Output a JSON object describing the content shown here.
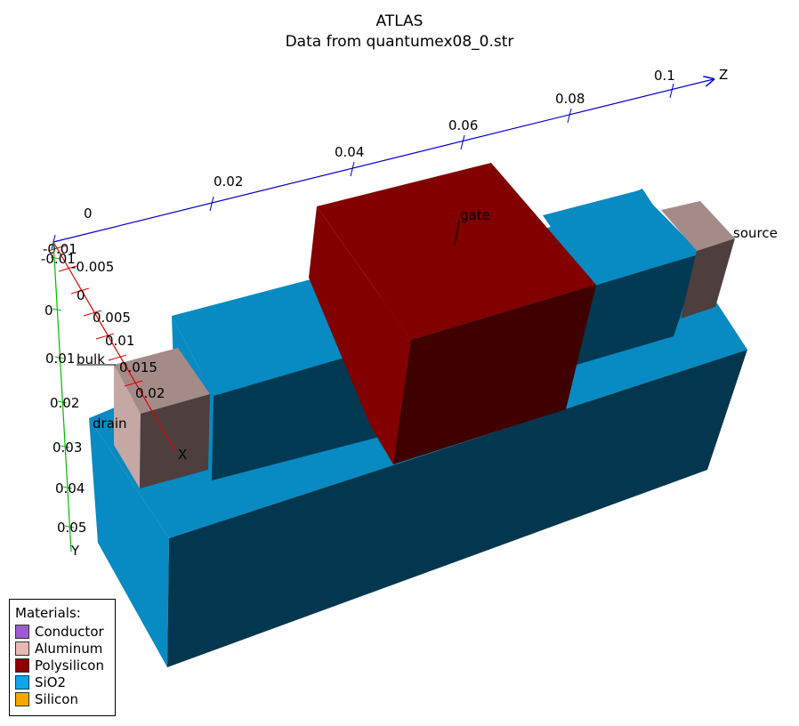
{
  "title": "ATLAS",
  "subtitle": "Data from quantumex08_0.str",
  "axes": {
    "z": {
      "label": "Z",
      "ticks": [
        {
          "label": "0"
        },
        {
          "label": "0.02"
        },
        {
          "label": "0.04"
        },
        {
          "label": "0.06"
        },
        {
          "label": "0.08"
        },
        {
          "label": "0.1"
        }
      ]
    },
    "x": {
      "label": "X",
      "ticks": [
        {
          "label": "-0.01"
        },
        {
          "label": "-0.005"
        },
        {
          "label": "0"
        },
        {
          "label": "0.005"
        },
        {
          "label": "0.01"
        },
        {
          "label": "0.015"
        },
        {
          "label": "0.02"
        }
      ]
    },
    "y": {
      "label": "Y",
      "ticks": [
        {
          "label": "-0.01"
        },
        {
          "label": "0"
        },
        {
          "label": "0.01"
        },
        {
          "label": "0.02"
        },
        {
          "label": "0.03"
        },
        {
          "label": "0.04"
        },
        {
          "label": "0.05"
        }
      ]
    }
  },
  "electrodes": {
    "gate": "gate",
    "source": "source",
    "drain": "drain",
    "bulk": "bulk"
  },
  "legend": {
    "title": "Materials:",
    "items": [
      {
        "label": "Conductor",
        "color": "#9c5ccc"
      },
      {
        "label": "Aluminum",
        "color": "#e8b9b3"
      },
      {
        "label": "Polysilicon",
        "color": "#8b0000"
      },
      {
        "label": "SiO2",
        "color": "#0ea5e9"
      },
      {
        "label": "Silicon",
        "color": "#f5a800"
      }
    ]
  }
}
